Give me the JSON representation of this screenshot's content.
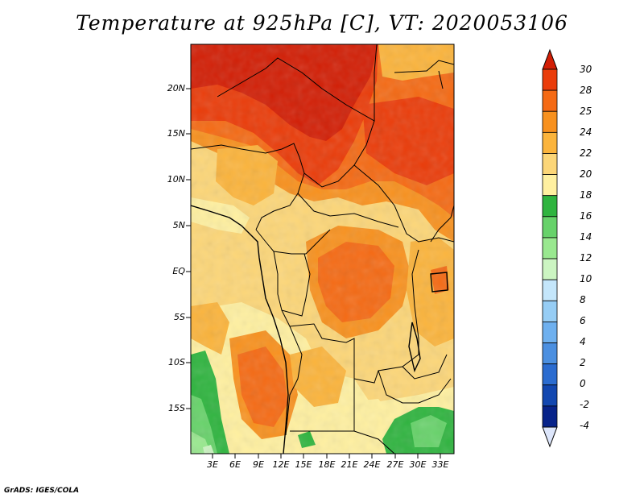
{
  "title": "Temperature at 925hPa [C], VT: 2020053106",
  "credit": "GrADS: IGES/COLA",
  "map": {
    "lat_labels": [
      "20N",
      "15N",
      "10N",
      "5N",
      "EQ",
      "5S",
      "10S",
      "15S"
    ],
    "lon_labels": [
      "3E",
      "6E",
      "9E",
      "12E",
      "15E",
      "18E",
      "21E",
      "24E",
      "27E",
      "30E",
      "33E"
    ]
  },
  "colorbar": {
    "labels": [
      "30",
      "28",
      "25",
      "24",
      "22",
      "20",
      "18",
      "16",
      "14",
      "12",
      "10",
      "8",
      "6",
      "4",
      "2",
      "0",
      "-2",
      "-4"
    ],
    "colors": [
      "#d21e05",
      "#ea3c0a",
      "#f56a14",
      "#f8911e",
      "#fbb43c",
      "#fcd678",
      "#fff0a0",
      "#2fb43f",
      "#67d26a",
      "#99e88f",
      "#ccf5c2",
      "#c4e6fb",
      "#96cdf5",
      "#6eb0ef",
      "#4b8fe0",
      "#2b6cd0",
      "#1247b0",
      "#07238a",
      "#dde6fb"
    ]
  }
}
